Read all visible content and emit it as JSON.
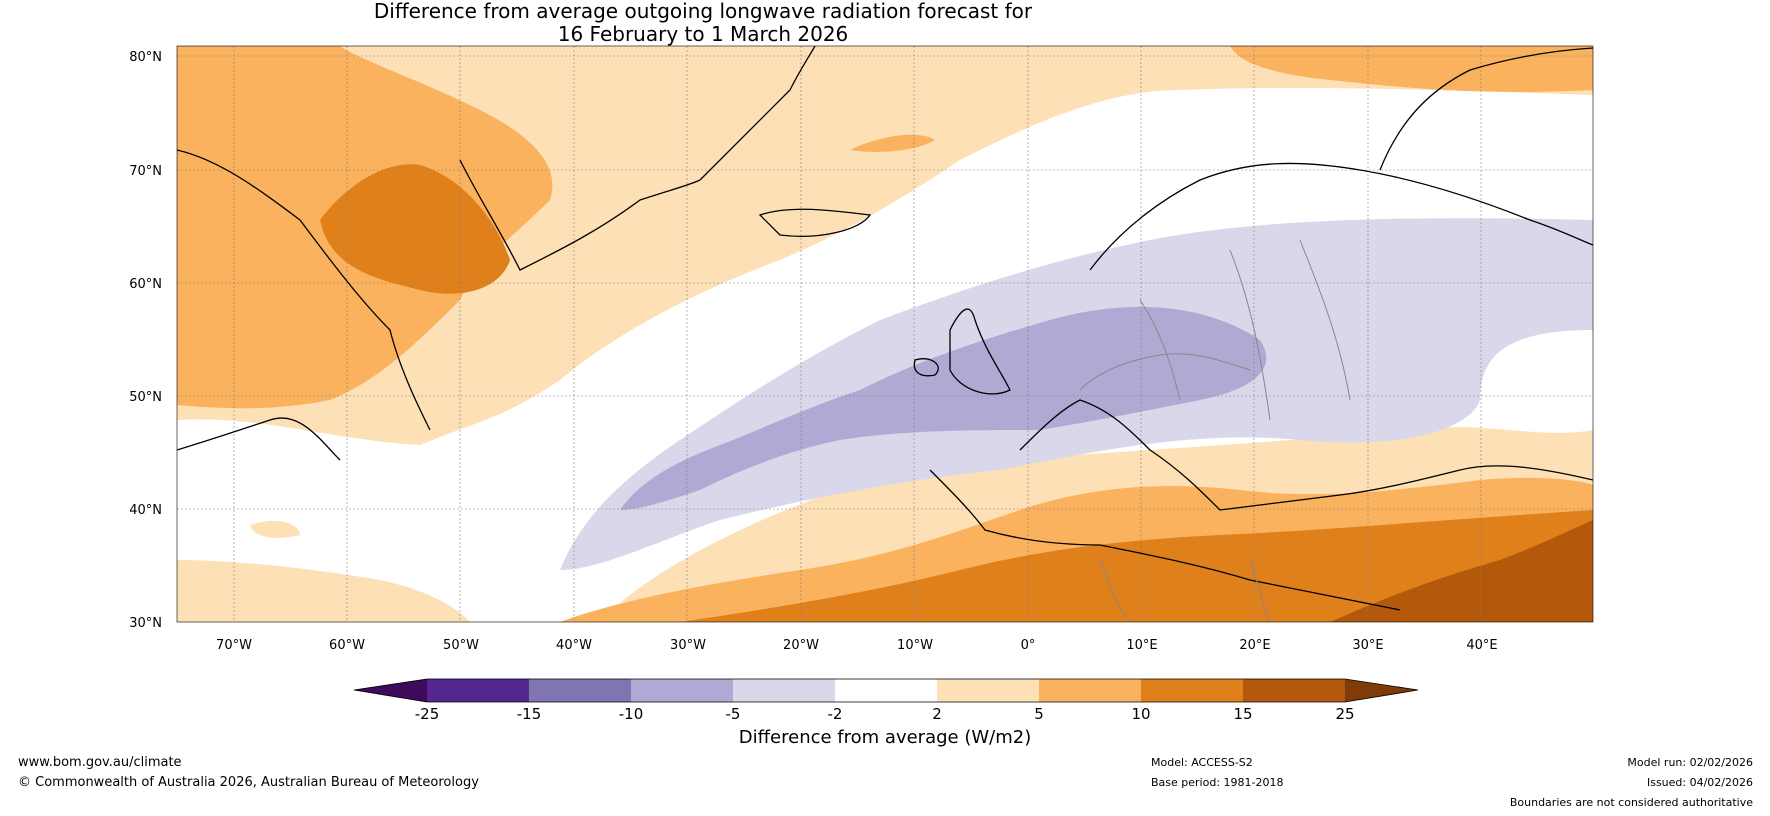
{
  "title": {
    "line1": "Difference from average outgoing longwave radiation forecast for",
    "line2": "16 February to 1 March 2026"
  },
  "map": {
    "lat_labels": [
      "80°N",
      "70°N",
      "60°N",
      "50°N",
      "40°N",
      "30°N"
    ],
    "lon_labels": [
      "70°W",
      "60°W",
      "50°W",
      "40°W",
      "30°W",
      "20°W",
      "10°W",
      "0°",
      "10°E",
      "20°E",
      "30°E",
      "40°E"
    ],
    "colors": {
      "ocean_neutral": "#ffffff",
      "orange_2_5": "#fde0b6",
      "orange_5_10": "#fbb25f",
      "orange_10_15": "#e0801a",
      "orange_15_25": "#b4590b",
      "purple_m2_m5": "#d8d8ea",
      "purple_m5_m10": "#b1a9d4",
      "coast": "#000000",
      "border": "#888888"
    }
  },
  "colorbar": {
    "title": "Difference from average (W/m2)",
    "ticks": [
      "-25",
      "-15",
      "-10",
      "-5",
      "-2",
      "2",
      "5",
      "10",
      "15",
      "25"
    ],
    "colors": [
      "#3f0a5a",
      "#54278f",
      "#8075b0",
      "#b1a9d4",
      "#d8d8ea",
      "#ffffff",
      "#fde0b6",
      "#fbb25f",
      "#e0801a",
      "#b4590b",
      "#7f3b08"
    ]
  },
  "footer": {
    "website": "www.bom.gov.au/climate",
    "copyright": "© Commonwealth of Australia 2026, Australian Bureau of Meteorology",
    "model": "Model: ACCESS-S2",
    "base_period": "Base period: 1981-2018",
    "model_run": "Model run: 02/02/2026",
    "issued": "Issued: 04/02/2026",
    "disclaimer": "Boundaries are not considered authoritative"
  }
}
